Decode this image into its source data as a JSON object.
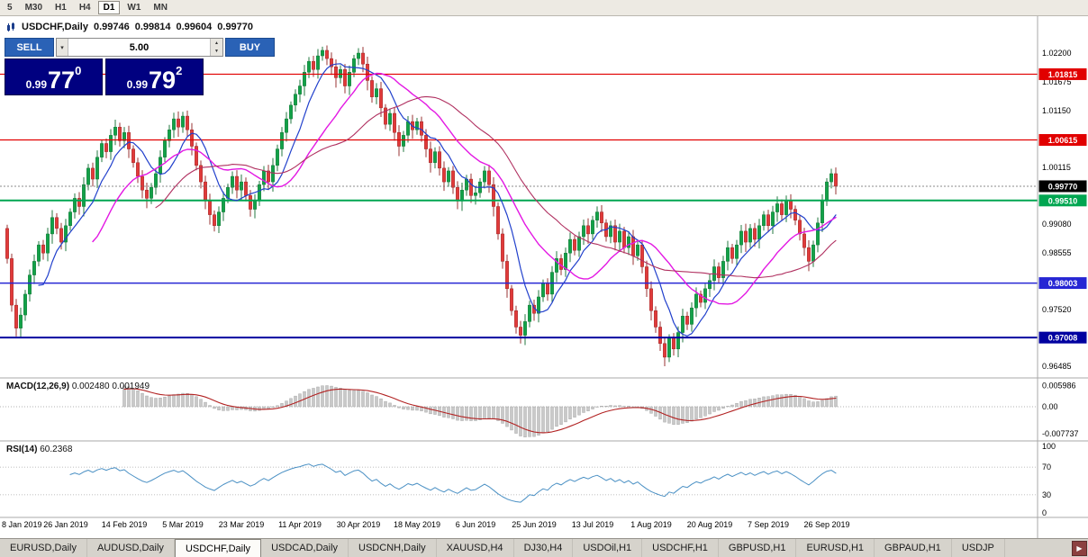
{
  "toolbar": {
    "timeframes": [
      {
        "label": "5",
        "active": false
      },
      {
        "label": "M30",
        "active": false
      },
      {
        "label": "H1",
        "active": false
      },
      {
        "label": "H4",
        "active": false
      },
      {
        "label": "D1",
        "active": true
      },
      {
        "label": "W1",
        "active": false
      },
      {
        "label": "MN",
        "active": false
      }
    ]
  },
  "chart": {
    "title": {
      "symbol": "USDCHF,Daily",
      "open": "0.99746",
      "high": "0.99814",
      "low": "0.99604",
      "close": "0.99770"
    },
    "trade_panel": {
      "sell_label": "SELL",
      "buy_label": "BUY",
      "volume": "5.00",
      "sell_price": {
        "prefix": "0.99",
        "big": "77",
        "sup": "0"
      },
      "buy_price": {
        "prefix": "0.99",
        "big": "79",
        "sup": "2"
      }
    },
    "macd_label": {
      "name": "MACD(12,26,9)",
      "value_main": "0.002480",
      "value_signal": "0.001949"
    },
    "rsi_label": {
      "name": "RSI(14)",
      "value": "60.2368"
    }
  },
  "chart_data": {
    "type": "candlestick",
    "symbol": "USDCHF",
    "timeframe": "Daily",
    "price_axis": {
      "top": 1.022,
      "bottom": 0.96485,
      "ticks": [
        "1.02200",
        "1.01675",
        "1.01150",
        "1.00115",
        "0.99080",
        "0.98555",
        "0.97520",
        "0.96485"
      ]
    },
    "x_labels": [
      "8 Jan 2019",
      "26 Jan 2019",
      "14 Feb 2019",
      "5 Mar 2019",
      "23 Mar 2019",
      "11 Apr 2019",
      "30 Apr 2019",
      "18 May 2019",
      "6 Jun 2019",
      "25 Jun 2019",
      "13 Jul 2019",
      "1 Aug 2019",
      "20 Aug 2019",
      "7 Sep 2019",
      "26 Sep 2019"
    ],
    "label_every": 13,
    "closes": [
      0.9845,
      0.976,
      0.9718,
      0.9742,
      0.978,
      0.9815,
      0.984,
      0.987,
      0.9855,
      0.989,
      0.992,
      0.99,
      0.9875,
      0.9905,
      0.993,
      0.9955,
      0.994,
      0.998,
      1.001,
      0.999,
      1.003,
      1.0055,
      1.004,
      1.007,
      1.0085,
      1.006,
      1.0075,
      1.0045,
      1.002,
      0.9995,
      0.997,
      0.9955,
      0.9975,
      1.0,
      1.003,
      1.006,
      1.008,
      1.01,
      1.0085,
      1.0105,
      1.008,
      1.005,
      1.0015,
      0.9985,
      0.995,
      0.9925,
      0.9905,
      0.993,
      0.9955,
      0.9975,
      0.9995,
      0.997,
      0.9985,
      0.996,
      0.9935,
      0.995,
      0.998,
      1.0005,
      0.9985,
      1.0015,
      1.0045,
      1.0075,
      1.01,
      1.0125,
      1.0145,
      1.016,
      1.0185,
      1.0205,
      1.019,
      1.0215,
      1.0225,
      1.021,
      1.0195,
      1.0175,
      1.019,
      1.016,
      1.0185,
      1.021,
      1.022,
      1.02,
      1.017,
      1.014,
      1.0155,
      1.012,
      1.009,
      1.011,
      1.0075,
      1.005,
      1.007,
      1.0095,
      1.008,
      1.0095,
      1.007,
      1.0045,
      1.002,
      1.004,
      1.001,
      0.9985,
      1.0005,
      0.9975,
      0.995,
      0.997,
      0.999,
      0.996,
      0.9965,
      0.9985,
      1.0005,
      0.998,
      0.994,
      0.989,
      0.984,
      0.979,
      0.975,
      0.972,
      0.9705,
      0.973,
      0.976,
      0.9745,
      0.9775,
      0.98,
      0.978,
      0.982,
      0.9845,
      0.9825,
      0.9855,
      0.988,
      0.986,
      0.9885,
      0.9905,
      0.989,
      0.9915,
      0.993,
      0.991,
      0.9885,
      0.9905,
      0.9875,
      0.9895,
      0.9865,
      0.9885,
      0.985,
      0.987,
      0.983,
      0.979,
      0.975,
      0.972,
      0.969,
      0.9665,
      0.97,
      0.968,
      0.971,
      0.974,
      0.9725,
      0.9755,
      0.978,
      0.9765,
      0.979,
      0.9805,
      0.983,
      0.981,
      0.984,
      0.9865,
      0.9845,
      0.987,
      0.9895,
      0.9875,
      0.99,
      0.988,
      0.9905,
      0.9925,
      0.9905,
      0.993,
      0.9945,
      0.9925,
      0.995,
      0.9935,
      0.9915,
      0.989,
      0.9865,
      0.984,
      0.987,
      0.991,
      0.995,
      0.9985,
      1.0,
      0.9977
    ],
    "levels": [
      {
        "price": 1.01815,
        "label": "1.01815",
        "color": "#e10000",
        "width": 1.2
      },
      {
        "price": 1.00615,
        "label": "1.00615",
        "color": "#e10000",
        "width": 1.2
      },
      {
        "price": 0.9951,
        "label": "0.99510",
        "color": "#00a651",
        "width": 2.0
      },
      {
        "price": 0.98003,
        "label": "0.98003",
        "color": "#2626d4",
        "width": 1.5
      },
      {
        "price": 0.97008,
        "label": "0.97008",
        "color": "#0000a0",
        "width": 2.0
      }
    ],
    "current_price": {
      "price": 0.9977,
      "label": "0.99770",
      "badge_color": "#000000"
    },
    "overlays": [
      {
        "type": "sma",
        "period": 8,
        "color": "#2140cc",
        "width": 1.2
      },
      {
        "type": "sma",
        "period": 20,
        "color": "#e318e3",
        "width": 1.4
      },
      {
        "type": "sma",
        "period": 34,
        "color": "#b03060",
        "width": 1.1
      }
    ],
    "macd": {
      "fast": 12,
      "slow": 26,
      "signal": 9,
      "axis": [
        "0.005986",
        "0.00",
        "-0.007737"
      ],
      "hist_color": "#c9c9c9",
      "hist_stroke": "#9d9d9d",
      "signal_color": "#b22222"
    },
    "rsi": {
      "period": 14,
      "axis": [
        "100",
        "70",
        "30",
        "0"
      ],
      "color": "#4a90c4"
    },
    "candle_up_color": "#12a148",
    "candle_down_color": "#e03a3a"
  },
  "tabs": {
    "items": [
      {
        "label": "EURUSD,Daily",
        "active": false
      },
      {
        "label": "AUDUSD,Daily",
        "active": false
      },
      {
        "label": "USDCHF,Daily",
        "active": true
      },
      {
        "label": "USDCAD,Daily",
        "active": false
      },
      {
        "label": "USDCNH,Daily",
        "active": false
      },
      {
        "label": "XAUUSD,H4",
        "active": false
      },
      {
        "label": "DJ30,H4",
        "active": false
      },
      {
        "label": "USDOil,H1",
        "active": false
      },
      {
        "label": "USDCHF,H1",
        "active": false
      },
      {
        "label": "GBPUSD,H1",
        "active": false
      },
      {
        "label": "EURUSD,H1",
        "active": false
      },
      {
        "label": "GBPAUD,H1",
        "active": false
      },
      {
        "label": "USDJP",
        "active": false
      }
    ],
    "scroll_right": "▶"
  }
}
